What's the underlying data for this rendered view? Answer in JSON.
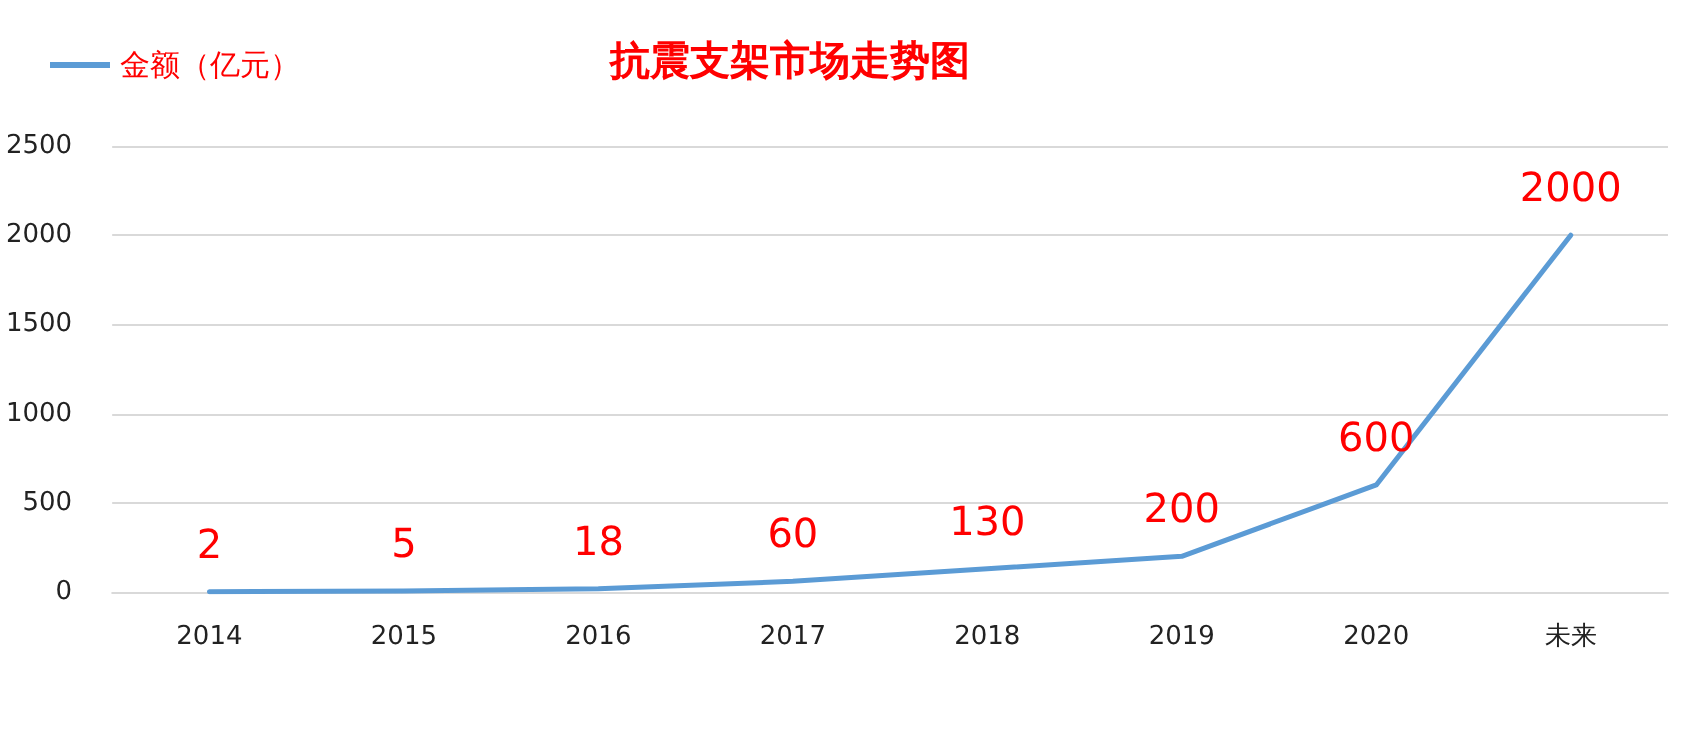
{
  "chart_data": {
    "type": "line",
    "title": "抗震支架市场走势图",
    "categories": [
      "2014",
      "2015",
      "2016",
      "2017",
      "2018",
      "2019",
      "2020",
      "未来"
    ],
    "series": [
      {
        "name": "金额（亿元）",
        "color": "#5b9bd5",
        "values": [
          2,
          5,
          18,
          60,
          130,
          200,
          600,
          2000
        ]
      }
    ],
    "ylim": [
      0,
      2500
    ],
    "yticks": [
      0,
      500,
      1000,
      1500,
      2000,
      2500
    ],
    "grid": "y",
    "legend": "top left",
    "marker": "none",
    "data_labels": true
  }
}
